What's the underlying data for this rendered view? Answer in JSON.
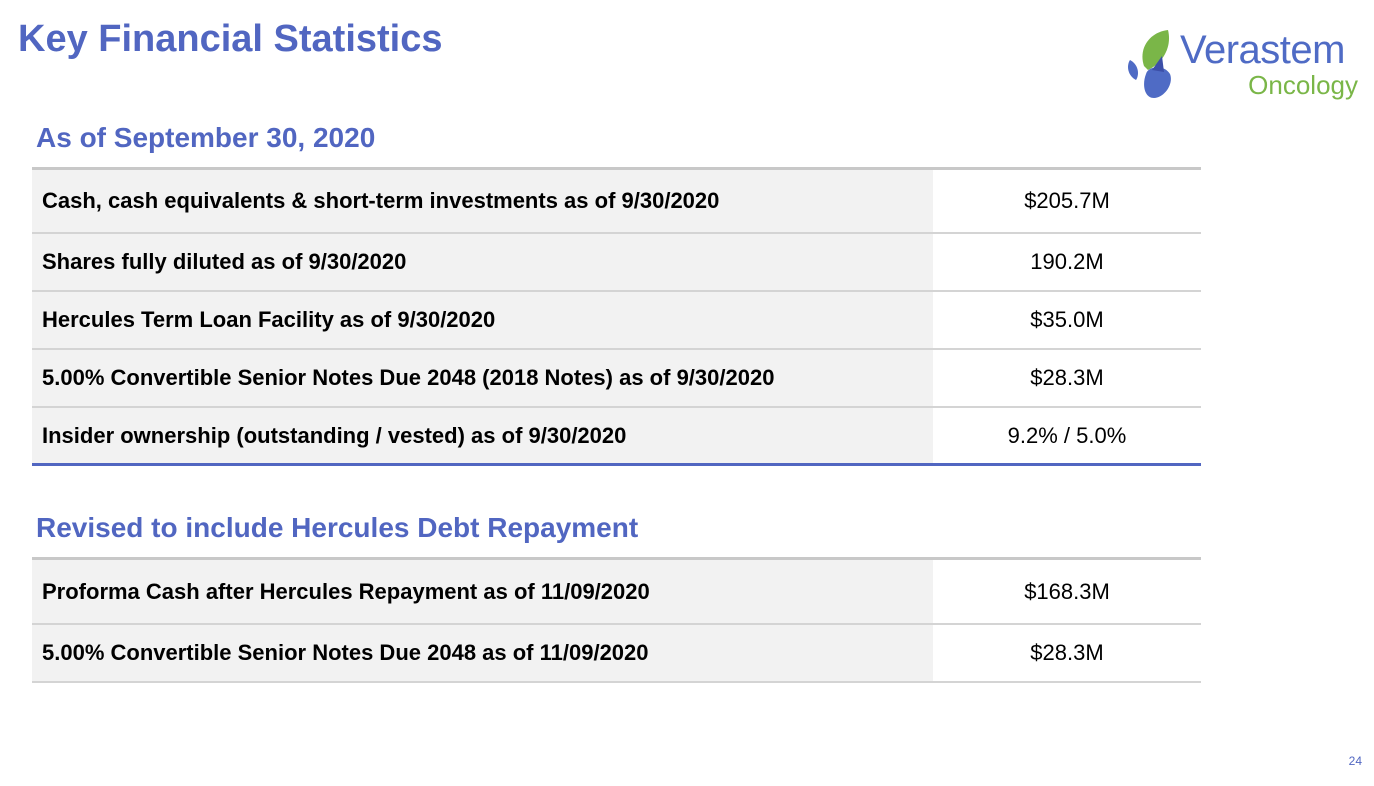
{
  "header": {
    "title": "Key Financial Statistics"
  },
  "logo": {
    "name": "Verastem",
    "subtitle": "Oncology",
    "colors": {
      "brand_blue": "#4f6bc5",
      "brand_green": "#7ab648",
      "mark_dark_blue": "#3c4fa8"
    }
  },
  "section1": {
    "heading": "As of September 30, 2020",
    "rows": [
      {
        "label": "Cash, cash equivalents & short-term investments as of 9/30/2020",
        "value": "$205.7M"
      },
      {
        "label": "Shares fully diluted as of 9/30/2020",
        "value": "190.2M"
      },
      {
        "label": "Hercules Term Loan Facility as of 9/30/2020",
        "value": "$35.0M"
      },
      {
        "label": "5.00% Convertible Senior Notes Due 2048 (2018 Notes) as of 9/30/2020",
        "value": "$28.3M"
      },
      {
        "label": "Insider ownership (outstanding / vested) as of 9/30/2020",
        "value": "9.2% / 5.0%"
      }
    ]
  },
  "section2": {
    "heading": "Revised to include Hercules Debt Repayment",
    "rows": [
      {
        "label": "Proforma Cash after Hercules Repayment as of 11/09/2020",
        "value": "$168.3M"
      },
      {
        "label": "5.00% Convertible Senior Notes Due 2048 as of 11/09/2020",
        "value": "$28.3M"
      }
    ]
  },
  "footer": {
    "page_number": "24"
  },
  "theme": {
    "accent": "#5166c1",
    "label_bg": "#f2f2f2",
    "divider": "#d4d4d4"
  }
}
